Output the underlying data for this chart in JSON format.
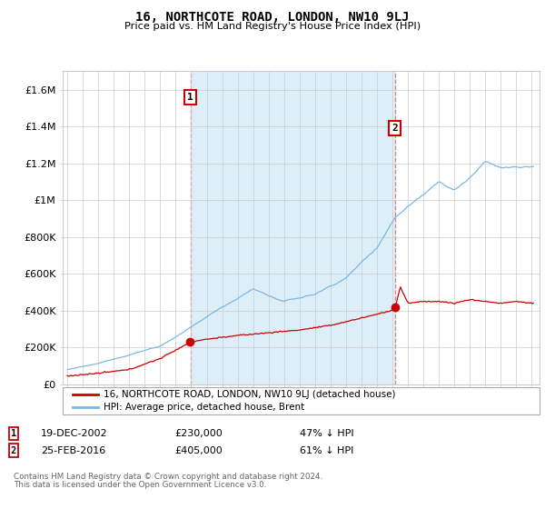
{
  "title": "16, NORTHCOTE ROAD, LONDON, NW10 9LJ",
  "subtitle": "Price paid vs. HM Land Registry's House Price Index (HPI)",
  "ylim": [
    0,
    1700000
  ],
  "yticks": [
    0,
    200000,
    400000,
    600000,
    800000,
    1000000,
    1200000,
    1400000,
    1600000
  ],
  "ytick_labels": [
    "£0",
    "£200K",
    "£400K",
    "£600K",
    "£800K",
    "£1M",
    "£1.2M",
    "£1.4M",
    "£1.6M"
  ],
  "hpi_color": "#7ab8e8",
  "hpi_fill_color": "#dceef8",
  "price_color": "#cc0000",
  "vline_color": "#e08080",
  "annotation1": {
    "x_year": 2002.96,
    "label": "1",
    "price": 230000,
    "date": "19-DEC-2002",
    "price_str": "£230,000",
    "hpi_pct": "47% ↓ HPI"
  },
  "annotation2": {
    "x_year": 2016.15,
    "label": "2",
    "price": 405000,
    "date": "25-FEB-2016",
    "price_str": "£405,000",
    "hpi_pct": "61% ↓ HPI"
  },
  "legend_line1": "16, NORTHCOTE ROAD, LONDON, NW10 9LJ (detached house)",
  "legend_line2": "HPI: Average price, detached house, Brent",
  "footer1": "Contains HM Land Registry data © Crown copyright and database right 2024.",
  "footer2": "This data is licensed under the Open Government Licence v3.0.",
  "background_color": "#ffffff",
  "grid_color": "#cccccc",
  "xlim_left": 1994.7,
  "xlim_right": 2025.5
}
